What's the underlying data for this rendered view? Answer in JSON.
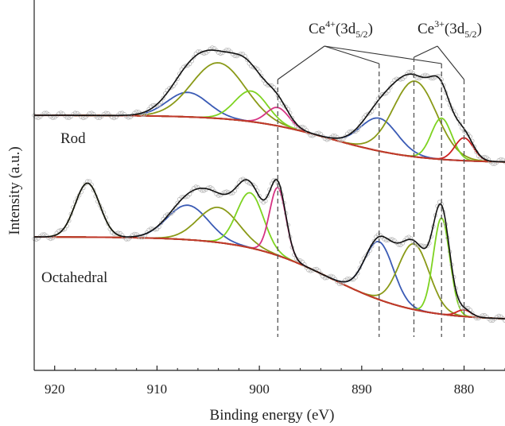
{
  "chart_data": {
    "type": "line",
    "xlabel": "Binding energy (eV)",
    "ylabel": "Intensity (a.u.)",
    "xlim": [
      922,
      876
    ],
    "x_reversed": true,
    "x_ticks": [
      920,
      910,
      900,
      890,
      880
    ],
    "y_ticks_shown": false,
    "panels": [
      {
        "label": "Rod",
        "background": "#c0392b",
        "envelope": "#111111",
        "data_points_color": "#b8b8b8",
        "components": [
          {
            "center": 907.0,
            "height": 0.44,
            "width": 2.0,
            "color": "#3b5bb5"
          },
          {
            "center": 904.0,
            "height": 1.0,
            "width": 2.6,
            "color": "#8a9a18"
          },
          {
            "center": 900.8,
            "height": 0.55,
            "width": 1.6,
            "color": "#7ed321"
          },
          {
            "center": 898.2,
            "height": 0.33,
            "width": 1.1,
            "color": "#d63384"
          },
          {
            "center": 888.3,
            "height": 0.59,
            "width": 1.8,
            "color": "#3b5bb5"
          },
          {
            "center": 884.8,
            "height": 1.36,
            "width": 2.1,
            "color": "#8a9a18"
          },
          {
            "center": 882.2,
            "height": 0.74,
            "width": 1.0,
            "color": "#7ed321"
          },
          {
            "center": 880.0,
            "height": 0.41,
            "width": 0.9,
            "color": "#cc2222"
          }
        ]
      },
      {
        "label": "Octahedral",
        "background": "#c0392b",
        "envelope": "#111111",
        "data_points_color": "#b8b8b8",
        "components": [
          {
            "center": 916.8,
            "height": 0.97,
            "width": 1.2,
            "color": "#8a9a18"
          },
          {
            "center": 907.0,
            "height": 0.62,
            "width": 2.0,
            "color": "#3b5bb5"
          },
          {
            "center": 904.0,
            "height": 0.63,
            "width": 2.0,
            "color": "#8a9a18"
          },
          {
            "center": 900.9,
            "height": 0.99,
            "width": 1.3,
            "color": "#7ed321"
          },
          {
            "center": 898.2,
            "height": 1.22,
            "width": 0.8,
            "color": "#d63384"
          },
          {
            "center": 888.3,
            "height": 1.04,
            "width": 1.4,
            "color": "#3b5bb5"
          },
          {
            "center": 884.9,
            "height": 1.18,
            "width": 1.5,
            "color": "#8a9a18"
          },
          {
            "center": 882.2,
            "height": 1.73,
            "width": 0.8,
            "color": "#7ed321"
          },
          {
            "center": 880.0,
            "height": 0.12,
            "width": 0.7,
            "color": "#cc2222"
          }
        ]
      }
    ],
    "annotations": [
      {
        "prefix": "Ce",
        "superscript": "4+",
        "middle": "(3d",
        "subscript": "5/2",
        "suffix": ")",
        "markers": [
          898.2,
          888.3,
          882.2
        ]
      },
      {
        "prefix": "Ce",
        "superscript": "3+",
        "middle": "(3d",
        "subscript": "5/2",
        "suffix": ")",
        "markers": [
          884.9,
          880.0
        ]
      }
    ]
  }
}
